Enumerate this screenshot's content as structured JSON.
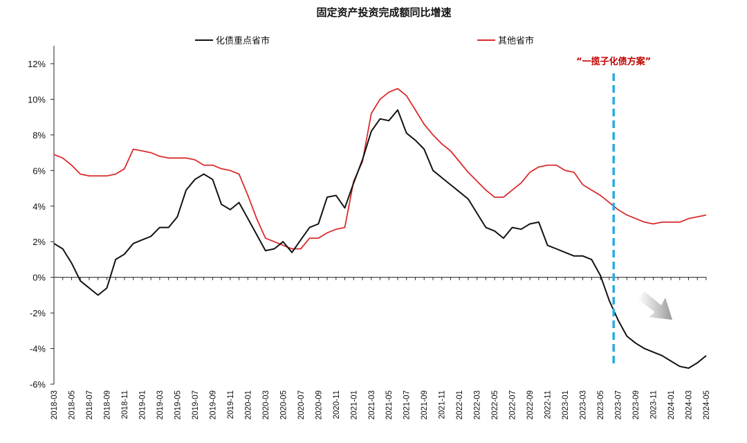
{
  "chart_data": {
    "type": "line",
    "title": "固定资产投资完成额同比增速",
    "xlabel": "",
    "ylabel": "",
    "ylim": [
      -6,
      13
    ],
    "y_ticks": [
      -6,
      -4,
      -2,
      0,
      2,
      4,
      6,
      8,
      10,
      12
    ],
    "y_tick_labels": [
      "-6%",
      "-4%",
      "-2%",
      "0%",
      "2%",
      "4%",
      "6%",
      "8%",
      "10%",
      "12%"
    ],
    "x_tick_labels": [
      "2018-03",
      "2018-05",
      "2018-07",
      "2018-09",
      "2018-11",
      "2019-01",
      "2019-03",
      "2019-05",
      "2019-07",
      "2019-09",
      "2019-11",
      "2020-01",
      "2020-03",
      "2020-05",
      "2020-07",
      "2020-09",
      "2020-11",
      "2021-01",
      "2021-03",
      "2021-05",
      "2021-07",
      "2021-09",
      "2021-11",
      "2022-01",
      "2022-03",
      "2022-05",
      "2022-07",
      "2022-09",
      "2022-11",
      "2023-01",
      "2023-03",
      "2023-05",
      "2023-07",
      "2023-09",
      "2023-11",
      "2024-01",
      "2024-03",
      "2024-05"
    ],
    "grid": false,
    "legend_position": "top",
    "series": [
      {
        "name": "化债重点省市",
        "color": "#111111",
        "values": [
          1.9,
          1.6,
          0.8,
          -0.2,
          -0.6,
          -1.0,
          -0.6,
          1.0,
          1.3,
          1.9,
          2.1,
          2.3,
          2.8,
          2.8,
          3.4,
          4.9,
          5.5,
          5.8,
          5.5,
          4.1,
          3.8,
          4.2,
          3.3,
          2.4,
          1.5,
          1.6,
          2.0,
          1.4,
          2.1,
          2.8,
          3.0,
          4.5,
          4.6,
          3.9,
          5.3,
          6.6,
          8.2,
          8.9,
          8.8,
          9.4,
          8.1,
          7.7,
          7.2,
          6.0,
          5.6,
          5.2,
          4.8,
          4.4,
          3.6,
          2.8,
          2.6,
          2.2,
          2.8,
          2.7,
          3.0,
          3.1,
          1.8,
          1.6,
          1.4,
          1.2,
          1.2,
          1.0,
          0.1,
          -1.3,
          -2.4,
          -3.3,
          -3.7,
          -4.0,
          -4.2,
          -4.4,
          -4.7,
          -5.0,
          -5.1,
          -4.8,
          -4.4
        ]
      },
      {
        "name": "其他省市",
        "color": "#d92b2b",
        "values": [
          6.9,
          6.7,
          6.3,
          5.8,
          5.7,
          5.7,
          5.7,
          5.8,
          6.1,
          7.2,
          7.1,
          7.0,
          6.8,
          6.7,
          6.7,
          6.7,
          6.6,
          6.3,
          6.3,
          6.1,
          6.0,
          5.8,
          4.6,
          3.3,
          2.2,
          2.0,
          1.8,
          1.6,
          1.6,
          2.2,
          2.2,
          2.5,
          2.7,
          2.8,
          5.4,
          6.5,
          9.2,
          10.0,
          10.4,
          10.6,
          10.2,
          9.4,
          8.6,
          8.0,
          7.5,
          7.1,
          6.5,
          5.9,
          5.4,
          4.9,
          4.5,
          4.5,
          4.9,
          5.3,
          5.9,
          6.2,
          6.3,
          6.3,
          6.0,
          5.9,
          5.2,
          4.9,
          4.6,
          4.2,
          3.8,
          3.5,
          3.3,
          3.1,
          3.0,
          3.1,
          3.1,
          3.1,
          3.3,
          3.4,
          3.5
        ]
      }
    ],
    "annotations": [
      {
        "text": "“一揽子化债方案”",
        "at_index": 63.5,
        "line_color": "#29abe2",
        "text_color": "#c00000"
      }
    ]
  }
}
